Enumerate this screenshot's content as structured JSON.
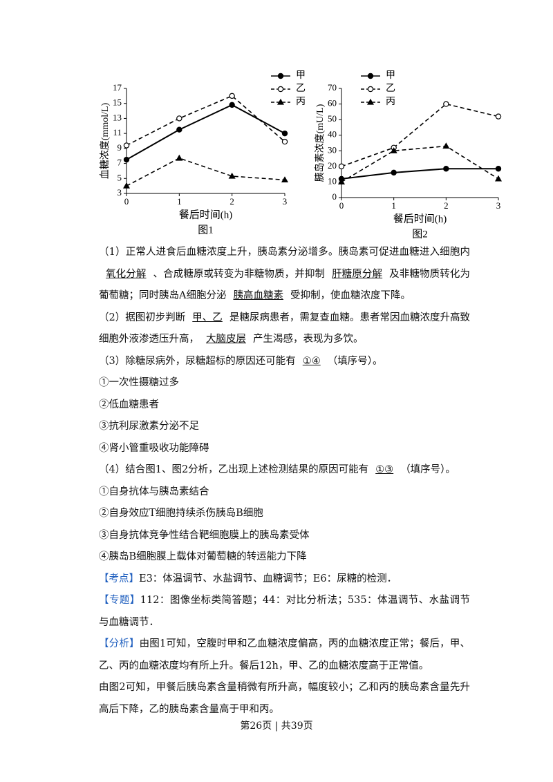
{
  "chart_data": [
    {
      "type": "line",
      "ylabel": "血糖浓度(mmol/L)",
      "xlabel": "餐后时间(h)",
      "caption": "图1",
      "x": [
        0,
        1,
        2,
        3
      ],
      "xlim": [
        0,
        3
      ],
      "xticks": [
        0,
        1,
        2,
        3
      ],
      "ylim": [
        3,
        17
      ],
      "yticks": [
        3,
        5,
        7,
        9,
        11,
        13,
        15,
        17
      ],
      "series": [
        {
          "name": "甲",
          "color": "#000000",
          "marker": "circle-filled",
          "dashed": false,
          "values": [
            7.5,
            11.5,
            14.8,
            11
          ]
        },
        {
          "name": "乙",
          "color": "#000000",
          "marker": "circle-open",
          "dashed": true,
          "values": [
            9.4,
            13,
            16,
            9.9
          ]
        },
        {
          "name": "丙",
          "color": "#000000",
          "marker": "triangle",
          "dashed": true,
          "values": [
            4,
            7.7,
            5.3,
            4.8
          ]
        }
      ]
    },
    {
      "type": "line",
      "ylabel": "胰岛素浓度(mU/L)",
      "xlabel": "餐后时间(h)",
      "caption": "图2",
      "x": [
        0,
        1,
        2,
        3
      ],
      "xlim": [
        0,
        3
      ],
      "xticks": [
        0,
        1,
        2,
        3
      ],
      "ylim": [
        0,
        70
      ],
      "yticks": [
        0,
        10,
        20,
        30,
        40,
        50,
        60,
        70
      ],
      "series": [
        {
          "name": "甲",
          "color": "#000000",
          "marker": "circle-filled",
          "dashed": false,
          "values": [
            12,
            16,
            18.5,
            18.5
          ]
        },
        {
          "name": "乙",
          "color": "#000000",
          "marker": "circle-open",
          "dashed": true,
          "values": [
            20,
            32,
            60,
            52
          ]
        },
        {
          "name": "丙",
          "color": "#000000",
          "marker": "triangle",
          "dashed": true,
          "values": [
            10,
            30,
            33,
            12
          ]
        }
      ]
    }
  ],
  "document": {
    "paragraphs": [
      [
        "（1）正常人进食后血糖浓度上升，胰岛素分泌增多。胰岛素可促进血糖进入细胞内",
        "氧化分解",
        "、合成糖原或转变为非糖物质，并抑制",
        "肝糖原分解",
        "及非糖物质转化为葡萄糖；同时胰岛A细胞分泌",
        "胰高血糖素",
        "受抑制，使血糖浓度下降。"
      ],
      [
        "（2）据图初步判断",
        "甲、乙",
        "是糖尿病患者，需复查血糖。患者常因血糖浓度升高致细胞外液渗透压升高，",
        "大脑皮层",
        "产生渴感，表现为多饮。"
      ],
      [
        "（3）除糖尿病外，尿糖超标的原因还可能有",
        "①④",
        "（填序号）。"
      ],
      [
        "①一次性摄糖过多"
      ],
      [
        "②低血糖患者"
      ],
      [
        "③抗利尿激素分泌不足"
      ],
      [
        "④肾小管重吸收功能障碍"
      ],
      [
        "（4）结合图1、图2分析，乙出现上述检测结果的原因可能有",
        "①③",
        "（填序号）。"
      ],
      [
        "①自身抗体与胰岛素结合"
      ],
      [
        "②自身效应T细胞持续杀伤胰岛B细胞"
      ],
      [
        "③自身抗体竞争性结合靶细胞膜上的胰岛素受体"
      ],
      [
        "④胰岛B细胞膜上载体对葡萄糖的转运能力下降"
      ],
      [
        "【考点】",
        "E3：体温调节、水盐调节、血糖调节；E6：尿糖的检测．"
      ],
      [
        "【专题】",
        "112：图像坐标类简答题；44：对比分析法；535：体温调节、水盐调节与血糖调节．"
      ],
      [
        "【分析】",
        "由图1可知，空腹时甲和乙血糖浓度偏高，丙的血糖浓度正常；餐后，甲、乙、丙的血糖浓度均有所上升。餐后12h，甲、乙的血糖浓度高于正常值。"
      ],
      [
        "由图2可知，甲餐后胰岛素含量稍微有所升高，幅度较小；乙和丙的胰岛素含量先升高后下降，乙的胰岛素含量高于甲和丙。"
      ]
    ],
    "footer": "第26页 | 共39页"
  }
}
